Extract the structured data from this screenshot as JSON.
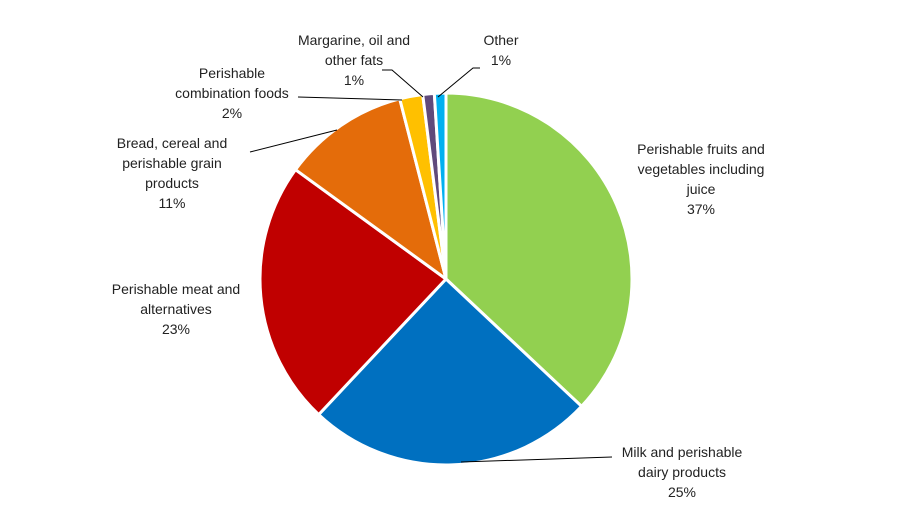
{
  "chart_data": {
    "type": "pie",
    "title": "",
    "slices": [
      {
        "label_lines": [
          "Perishable fruits and",
          "vegetables including",
          "juice"
        ],
        "value_label": "37%",
        "value": 37,
        "color": "#92d050"
      },
      {
        "label_lines": [
          "Milk and perishable",
          "dairy products"
        ],
        "value_label": "25%",
        "value": 25,
        "color": "#0070c0"
      },
      {
        "label_lines": [
          "Perishable meat and",
          "alternatives"
        ],
        "value_label": "23%",
        "value": 23,
        "color": "#c00000"
      },
      {
        "label_lines": [
          "Bread, cereal and",
          "perishable grain",
          "products"
        ],
        "value_label": "11%",
        "value": 11,
        "color": "#e46c0a"
      },
      {
        "label_lines": [
          "Perishable",
          "combination foods"
        ],
        "value_label": "2%",
        "value": 2,
        "color": "#ffc000"
      },
      {
        "label_lines": [
          "Margarine, oil and",
          "other fats"
        ],
        "value_label": "1%",
        "value": 1,
        "color": "#604a7b"
      },
      {
        "label_lines": [
          "Other"
        ],
        "value_label": "1%",
        "value": 1,
        "color": "#00b0f0"
      }
    ],
    "start_angle_deg": 0,
    "direction": "clockwise",
    "legend": "none"
  }
}
